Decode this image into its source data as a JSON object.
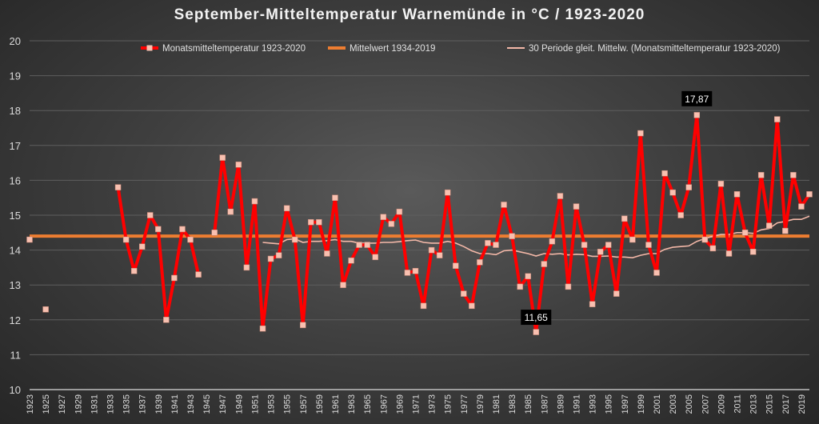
{
  "chart_data": {
    "type": "line",
    "title": "September-Mitteltemperatur Warnemünde in °C / 1923-2020",
    "xlabel": "",
    "ylabel": "",
    "ylim": [
      10,
      20
    ],
    "yticks": [
      10,
      11,
      12,
      13,
      14,
      15,
      16,
      17,
      18,
      19,
      20
    ],
    "x_start": 1923,
    "x_end": 2020,
    "grid": true,
    "legend_position": "top",
    "colors": {
      "monthly": "#ff0000",
      "marker": "#f8c0b0",
      "mean": "#ed7d31",
      "moving": "#f4b8a8"
    },
    "series": [
      {
        "name": "Monatsmitteltemperatur 1923-2020",
        "start_year": 1923,
        "values": [
          14.3,
          null,
          12.3,
          null,
          null,
          null,
          null,
          null,
          null,
          null,
          null,
          15.8,
          14.3,
          13.4,
          14.1,
          15.0,
          14.6,
          12.0,
          13.2,
          14.6,
          14.3,
          13.3,
          null,
          14.5,
          16.65,
          15.1,
          16.45,
          13.5,
          15.4,
          11.75,
          13.75,
          13.85,
          15.2,
          14.3,
          11.85,
          14.8,
          14.8,
          13.9,
          15.5,
          13.0,
          13.7,
          14.15,
          14.15,
          13.8,
          14.95,
          14.75,
          15.1,
          13.35,
          13.4,
          12.4,
          14.0,
          13.85,
          15.65,
          13.55,
          12.75,
          12.4,
          13.65,
          14.2,
          14.15,
          15.3,
          14.4,
          12.95,
          13.25,
          11.65,
          13.6,
          14.25,
          15.55,
          12.95,
          15.25,
          14.15,
          12.45,
          13.95,
          14.15,
          12.75,
          14.9,
          14.3,
          17.35,
          14.15,
          13.35,
          16.2,
          15.65,
          15.0,
          15.8,
          17.87,
          14.3,
          14.05,
          15.9,
          13.9,
          15.6,
          14.5,
          13.95,
          16.15,
          14.7,
          17.75,
          14.55,
          16.15,
          15.25,
          15.6
        ]
      },
      {
        "name": "Mittelwert 1934-2019",
        "value": 14.4
      },
      {
        "name": "30 Periode gleit. Mittelw. (Monatsmitteltemperatur 1923-2020)",
        "start_year": 1952,
        "values": [
          14.22,
          14.2,
          14.18,
          14.3,
          14.32,
          14.22,
          14.25,
          14.25,
          14.27,
          14.3,
          14.25,
          14.25,
          14.2,
          14.2,
          14.2,
          14.22,
          14.22,
          14.24,
          14.27,
          14.29,
          14.22,
          14.2,
          14.2,
          14.25,
          14.2,
          14.1,
          13.98,
          13.9,
          13.9,
          13.87,
          13.98,
          14.0,
          13.95,
          13.9,
          13.83,
          13.9,
          13.88,
          13.9,
          13.86,
          13.88,
          13.87,
          13.82,
          13.82,
          13.83,
          13.8,
          13.8,
          13.78,
          13.85,
          13.9,
          13.9,
          14.02,
          14.08,
          14.1,
          14.12,
          14.25,
          14.33,
          14.4,
          14.45,
          14.45,
          14.5,
          14.5,
          14.48,
          14.58,
          14.62,
          14.78,
          14.82,
          14.88,
          14.88,
          14.97
        ]
      }
    ],
    "annotations": [
      {
        "year": 1986,
        "label": "11,65"
      },
      {
        "year": 2006,
        "label": "17,87"
      }
    ]
  }
}
